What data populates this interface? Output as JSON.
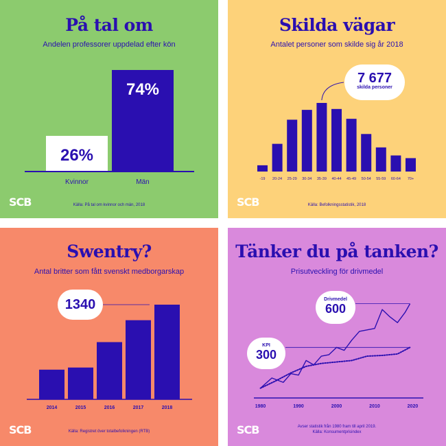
{
  "colors": {
    "accent": "#2a0fb0",
    "green": "#8ccb6e",
    "yellow": "#fdd27a",
    "orange": "#f7896a",
    "purple": "#d989dc",
    "white": "#ffffff"
  },
  "logo_text": "SCB",
  "panel1": {
    "title": "På tal om",
    "subtitle": "Andelen professorer uppdelad efter kön",
    "source": "Källa: På tal om kvinnor och män, 2018",
    "chart_data": {
      "type": "bar",
      "categories": [
        "Kvinnor",
        "Män"
      ],
      "values": [
        26,
        74
      ],
      "value_labels": [
        "26%",
        "74%"
      ],
      "ylim": [
        0,
        100
      ]
    }
  },
  "panel2": {
    "title": "Skilda vägar",
    "subtitle": "Antalet personer som skilde sig år 2018",
    "source": "Källa: Befolkningsstatistik, 2018",
    "callout_value": "7 677",
    "callout_label": "skilda personer",
    "chart_data": {
      "type": "bar",
      "categories": [
        "-19",
        "20-24",
        "25-29",
        "30-34",
        "35-39",
        "40-44",
        "45-49",
        "50-54",
        "55-59",
        "60-64",
        "70+"
      ],
      "values": [
        700,
        3100,
        5800,
        6900,
        7677,
        7000,
        5900,
        4200,
        2700,
        1800,
        1500
      ]
    }
  },
  "panel3": {
    "title": "Swentry?",
    "subtitle": "Antal britter som fått svenskt medborgarskap",
    "source": "Källa: Registret över totalbefolkningen (RTB)",
    "callout_value": "1340",
    "chart_data": {
      "type": "bar",
      "categories": [
        "2014",
        "2015",
        "2016",
        "2017",
        "2018"
      ],
      "values": [
        420,
        450,
        810,
        1120,
        1340
      ]
    }
  },
  "panel4": {
    "title": "Tänker du på tanken?",
    "subtitle": "Prisutveckling för drivmedel",
    "source_lines": [
      "Avser statistik från 1980 fram till april 2019.",
      "Källa: Konsumentprisindex"
    ],
    "callout1_label": "Drivmedel",
    "callout1_value": "600",
    "callout2_label": "KPI",
    "callout2_value": "300",
    "chart_data": {
      "type": "line",
      "xlim": [
        1979,
        2021
      ],
      "ylim": [
        0,
        650
      ],
      "x_ticks": [
        "1980",
        "1990",
        "2000",
        "2010",
        "2020"
      ],
      "series": [
        {
          "name": "Drivmedel",
          "x": [
            1980,
            1983,
            1986,
            1988,
            1990,
            1992,
            1994,
            1996,
            1998,
            2000,
            2002,
            2004,
            2006,
            2008,
            2010,
            2012,
            2014,
            2016,
            2018,
            2019.3
          ],
          "y": [
            20,
            90,
            60,
            120,
            110,
            210,
            180,
            240,
            250,
            300,
            280,
            350,
            410,
            420,
            430,
            560,
            510,
            470,
            540,
            600
          ]
        },
        {
          "name": "KPI",
          "x": [
            1980,
            1984,
            1988,
            1992,
            1996,
            2000,
            2004,
            2008,
            2012,
            2016,
            2019.3
          ],
          "y": [
            20,
            70,
            125,
            170,
            190,
            200,
            210,
            240,
            245,
            255,
            300
          ]
        }
      ]
    }
  }
}
